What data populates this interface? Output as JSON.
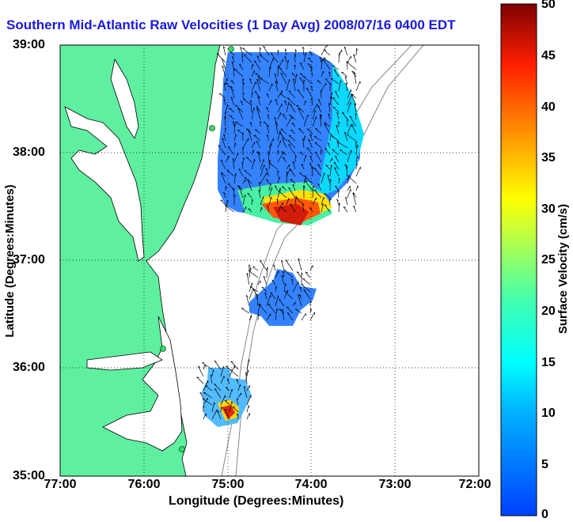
{
  "title": "Southern Mid-Atlantic Raw Velocities (1 Day Avg) 2008/07/16 0400 EDT",
  "xaxis": {
    "label": "Longitude (Degrees:Minutes)",
    "ticks": [
      "77:00",
      "76:00",
      "75:00",
      "74:00",
      "73:00",
      "72:00"
    ]
  },
  "yaxis": {
    "label": "Latitude (Degrees:Minutes)",
    "ticks": [
      "39:00",
      "38:00",
      "37:00",
      "36:00",
      "35:00"
    ]
  },
  "colorbar": {
    "label": "Surface Velocity (cm/s)",
    "ticks": [
      "50",
      "45",
      "40",
      "35",
      "30",
      "25",
      "20",
      "15",
      "10",
      "5",
      "0"
    ],
    "range": [
      0,
      50
    ],
    "colormap": "jet"
  },
  "map": {
    "lon_range": [
      -77,
      -72
    ],
    "lat_range": [
      35,
      39
    ],
    "land_color": "#5ef0a0",
    "grid": "dotted"
  }
}
